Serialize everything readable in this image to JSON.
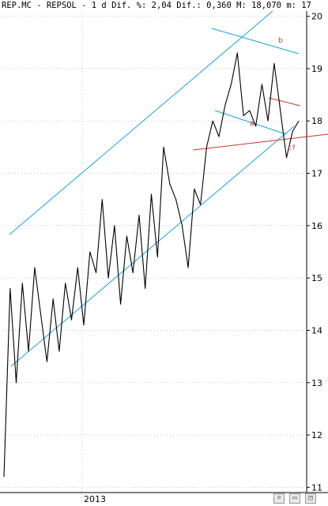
{
  "header": {
    "title": "REP.MC - REPSOL - 1 d Dif. %: 2,04 Dif.: 0,360 M: 18,070 m: 17"
  },
  "chart_data": {
    "type": "line",
    "title": "REP.MC - REPSOL - 1 d",
    "xlabel": "",
    "ylabel": "",
    "x_tick_labels": [
      "2013"
    ],
    "y_tick_labels": [
      "20",
      "19",
      "18",
      "17",
      "16",
      "15",
      "14",
      "13",
      "12",
      "11"
    ],
    "ylim": [
      10.9,
      20.1
    ],
    "grid": true,
    "annotations": [
      "b",
      "a",
      "c?"
    ],
    "series": [
      {
        "values": [
          11.2,
          14.8,
          13.0,
          14.9,
          13.6,
          15.2,
          14.3,
          13.4,
          14.6,
          13.6,
          14.9,
          14.2,
          15.2,
          14.1,
          15.5,
          15.1,
          16.5,
          15.0,
          16.0,
          14.5,
          15.8,
          15.1,
          16.2,
          14.8,
          16.6,
          15.4,
          17.5,
          16.8,
          16.5,
          16.0,
          15.2,
          16.7,
          16.4,
          17.5,
          18.0,
          17.7,
          18.3,
          18.7,
          19.3,
          18.1,
          18.2,
          17.9,
          18.7,
          18.0,
          19.1,
          18.2,
          17.3,
          17.8,
          18.0
        ]
      }
    ]
  },
  "annotation_labels": {
    "b": "b",
    "a": "a",
    "c": "c?"
  },
  "footer_icons": [
    "zoom-icon",
    "scroll-icon",
    "window-icon"
  ],
  "colors": {
    "price": "#000000",
    "channel": "#1ea0d8",
    "support": "#c0392b",
    "grid": "#9a9a9a",
    "annotation": "#c0392b"
  }
}
